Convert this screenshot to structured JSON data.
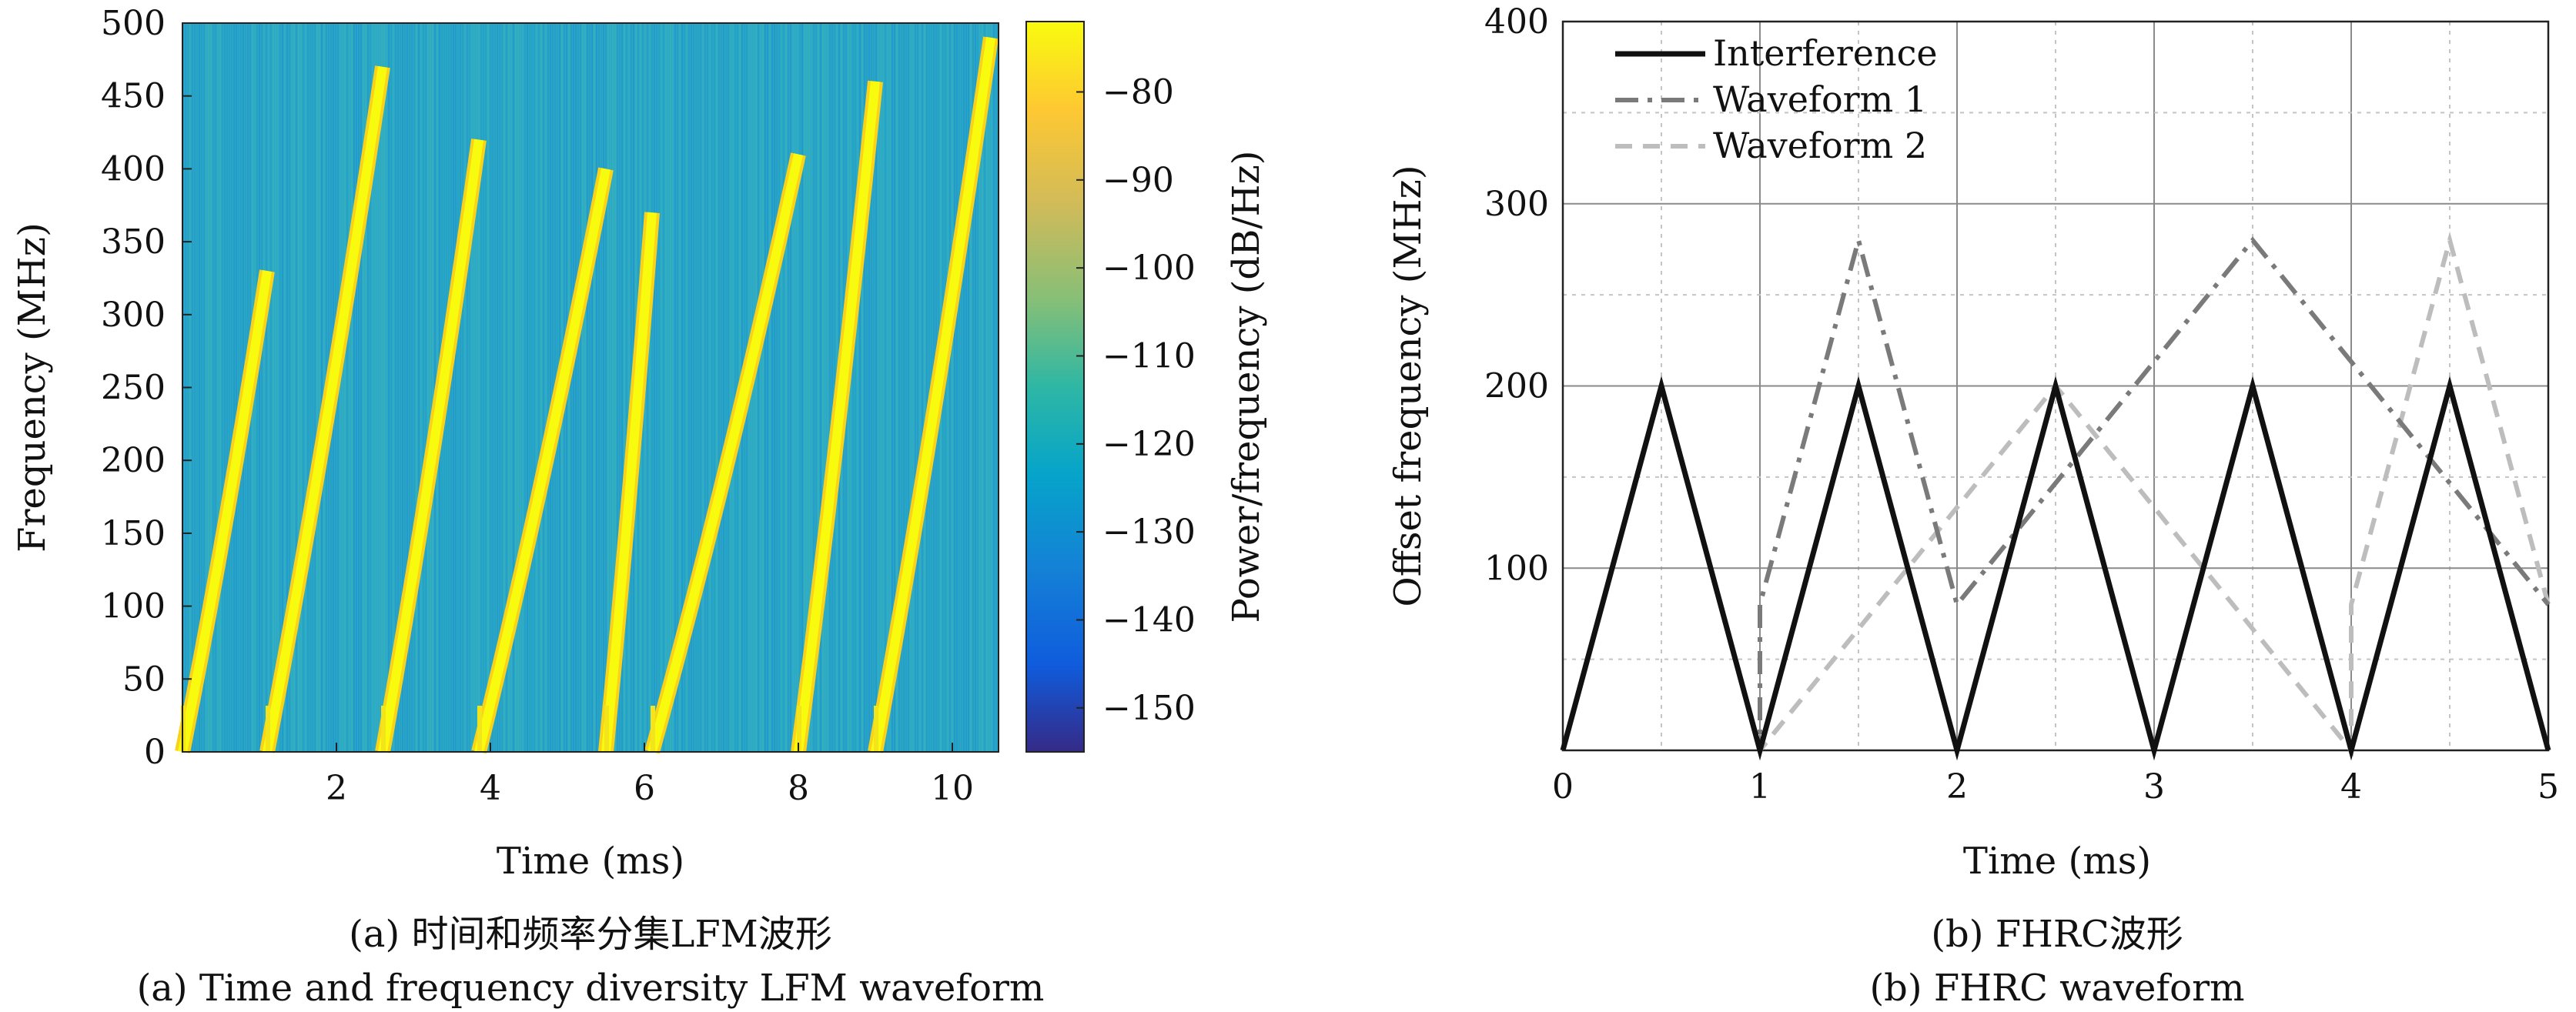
{
  "chart_data": [
    {
      "type": "heatmap",
      "xlabel": "Time (ms)",
      "ylabel": "Frequency (MHz)",
      "xlim": [
        0,
        10.6
      ],
      "ylim": [
        0,
        500
      ],
      "xticks": [
        "2",
        "4",
        "6",
        "8",
        "10"
      ],
      "yticks": [
        "0",
        "50",
        "100",
        "150",
        "200",
        "250",
        "300",
        "350",
        "400",
        "450",
        "500"
      ],
      "colorbar": {
        "label": "Power/frequency (dB/Hz)",
        "range": [
          -155,
          -72
        ],
        "ticks": [
          "−80",
          "−90",
          "−100",
          "−110",
          "−120",
          "−130",
          "−140",
          "−150"
        ]
      },
      "background_level_db": -125,
      "chirps": [
        {
          "t_start": 0.0,
          "t_end": 1.1,
          "f_start": 0,
          "f_end": 330
        },
        {
          "t_start": 1.1,
          "t_end": 2.6,
          "f_start": 0,
          "f_end": 470
        },
        {
          "t_start": 2.6,
          "t_end": 3.85,
          "f_start": 0,
          "f_end": 420
        },
        {
          "t_start": 3.85,
          "t_end": 5.5,
          "f_start": 0,
          "f_end": 400
        },
        {
          "t_start": 5.5,
          "t_end": 6.1,
          "f_start": 0,
          "f_end": 370
        },
        {
          "t_start": 6.1,
          "t_end": 8.0,
          "f_start": 0,
          "f_end": 410
        },
        {
          "t_start": 8.0,
          "t_end": 9.0,
          "f_start": 0,
          "f_end": 460
        },
        {
          "t_start": 9.0,
          "t_end": 10.5,
          "f_start": 0,
          "f_end": 490
        }
      ],
      "caption_cn": "(a) 时间和频率分集LFM波形",
      "caption_en": "(a) Time and frequency diversity LFM waveform"
    },
    {
      "type": "line",
      "xlabel": "Time (ms)",
      "ylabel": "Offset frequency (MHz)",
      "xlim": [
        0,
        5
      ],
      "ylim": [
        0,
        400
      ],
      "xticks": [
        "0",
        "1",
        "2",
        "3",
        "4",
        "5"
      ],
      "yticks": [
        "100",
        "200",
        "300",
        "400"
      ],
      "grid": true,
      "legend_position": "top-left",
      "series": [
        {
          "name": "Interference",
          "color": "#111111",
          "dash": "solid",
          "x": [
            0,
            0.5,
            1,
            1.5,
            2,
            2.5,
            3,
            3.5,
            4,
            4.5,
            5
          ],
          "y": [
            0,
            200,
            0,
            200,
            0,
            200,
            0,
            200,
            0,
            200,
            0
          ]
        },
        {
          "name": "Waveform 1",
          "color": "#7a7a7a",
          "dash": "dashdot",
          "x": [
            0,
            0.5,
            1,
            1,
            1.5,
            2,
            3.5,
            5
          ],
          "y": [
            0,
            200,
            0,
            80,
            280,
            80,
            280,
            80
          ]
        },
        {
          "name": "Waveform 2",
          "color": "#bdbdbd",
          "dash": "dashed",
          "x": [
            0,
            0.5,
            1,
            2.5,
            4,
            4,
            4.5,
            5
          ],
          "y": [
            0,
            200,
            0,
            200,
            0,
            80,
            280,
            80
          ]
        }
      ],
      "caption_cn": "(b) FHRC波形",
      "caption_en": "(b) FHRC waveform"
    }
  ]
}
